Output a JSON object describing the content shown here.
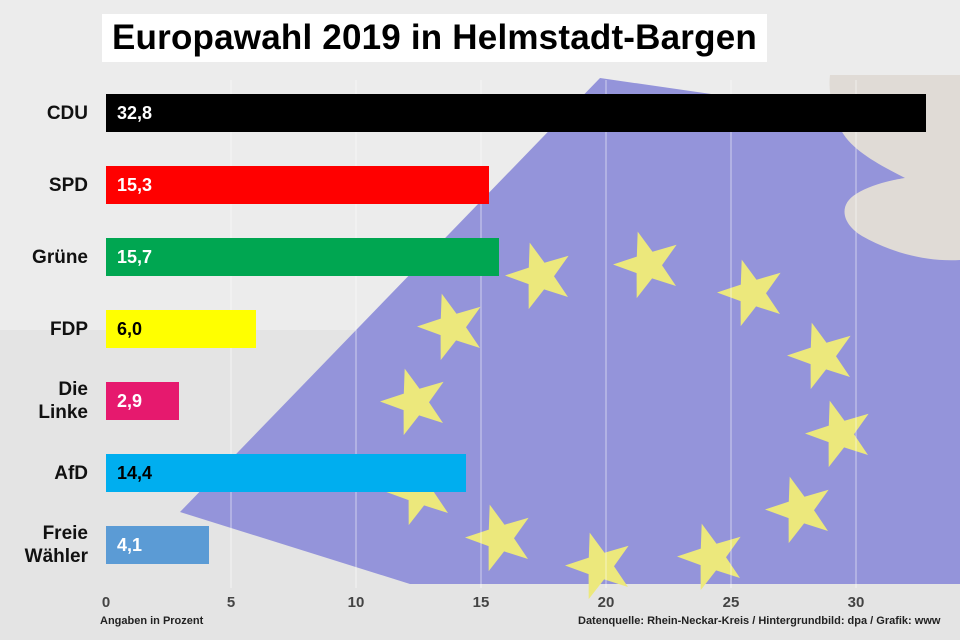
{
  "title": "Europawahl 2019 in Helmstadt-Bargen",
  "footer": {
    "left": "Angaben in Prozent",
    "right": "Datenquelle: Rhein-Neckar-Kreis  / Hintergrundbild: dpa / Grafik: www"
  },
  "chart_data": {
    "type": "bar",
    "orientation": "horizontal",
    "title": "Europawahl 2019 in Helmstadt-Bargen",
    "xlabel": "Angaben in Prozent",
    "xlim": [
      0,
      33
    ],
    "xticks": [
      0,
      5,
      10,
      15,
      20,
      25,
      30
    ],
    "grid": true,
    "bars": [
      {
        "category": "CDU",
        "value": 32.8,
        "label": "32,8",
        "color": "#000000",
        "text_color": "#ffffff"
      },
      {
        "category": "SPD",
        "value": 15.3,
        "label": "15,3",
        "color": "#ff0000",
        "text_color": "#ffffff"
      },
      {
        "category": "Grüne",
        "value": 15.7,
        "label": "15,7",
        "color": "#00a651",
        "text_color": "#ffffff"
      },
      {
        "category": "FDP",
        "value": 6.0,
        "label": "6,0",
        "color": "#ffff00",
        "text_color": "#000000"
      },
      {
        "category": "Die Linke",
        "label_lines": [
          "Die",
          "Linke"
        ],
        "value": 2.9,
        "label": "2,9",
        "color": "#e6196e",
        "text_color": "#ffffff"
      },
      {
        "category": "AfD",
        "value": 14.4,
        "label": "14,4",
        "color": "#00aeef",
        "text_color": "#000000"
      },
      {
        "category": "Freie Wähler",
        "label_lines": [
          "Freie",
          "Wähler"
        ],
        "value": 4.1,
        "label": "4,1",
        "color": "#5b9bd5",
        "text_color": "#ffffff"
      }
    ]
  }
}
